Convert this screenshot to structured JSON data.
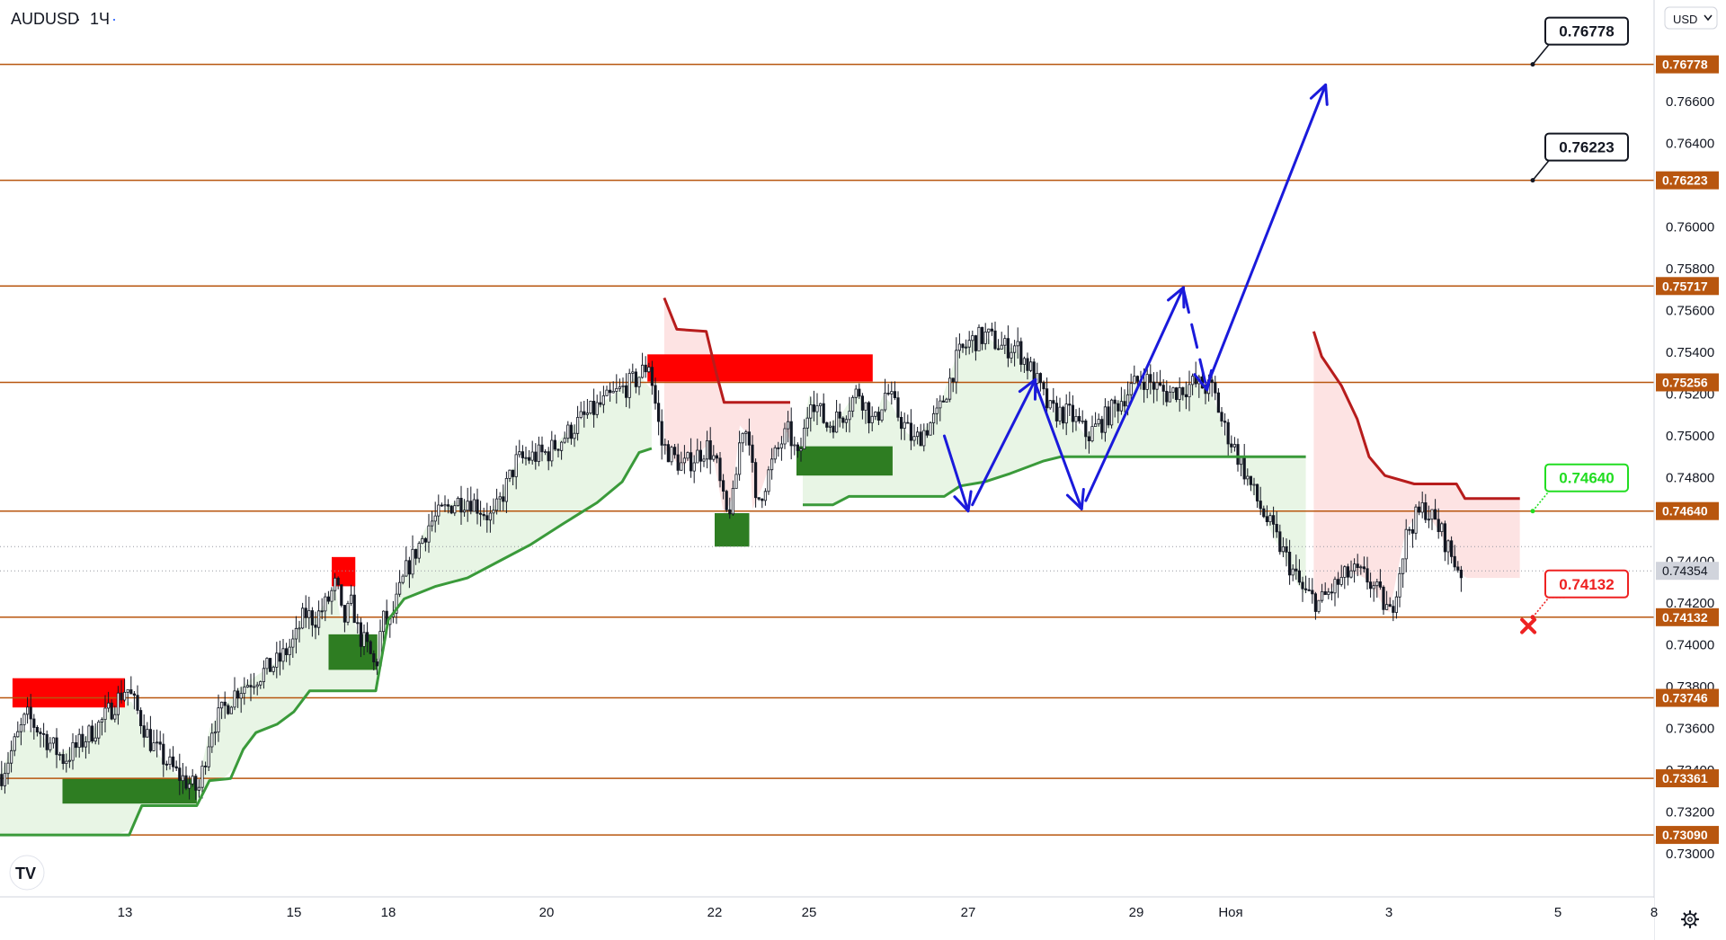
{
  "header": {
    "symbol": "AUDUSD",
    "separator": "·",
    "timeframe": "1Ч",
    "dot": "·"
  },
  "currency_button": {
    "label": "USD",
    "icon": "chevron-down-icon"
  },
  "settings": {
    "icon": "gear-icon"
  },
  "logo": {
    "text": "TV",
    "icon": "tradingview-logo-icon"
  },
  "colors": {
    "level_line": "#b8560f",
    "level_tag": "#b8560f",
    "up_zone": "#2e7d22",
    "down_zone": "#ff0000",
    "trend_up": "#3a9a3a",
    "trend_down": "#b71c1c",
    "arrow": "#1a1adb",
    "up_fill": "#e8f5e5",
    "down_fill": "#fde3e3",
    "candle": "#131722",
    "target_green": "#22dd22",
    "target_red": "#ee2222"
  },
  "chart_data": {
    "type": "candlestick",
    "symbol": "AUDUSD",
    "interval": "1Ч",
    "ylim": [
      0.729,
      0.77
    ],
    "grid": false,
    "y_ticks": [
      "0.76600",
      "0.76400",
      "0.76000",
      "0.75800",
      "0.75600",
      "0.75400",
      "0.75200",
      "0.75000",
      "0.74800",
      "0.74400",
      "0.74200",
      "0.74000",
      "0.73800",
      "0.73600",
      "0.73400",
      "0.73200",
      "0.73000"
    ],
    "x_ticks": [
      {
        "label": "13",
        "t": 13
      },
      {
        "label": "15",
        "t": 15
      },
      {
        "label": "18",
        "t": 18
      },
      {
        "label": "20",
        "t": 20
      },
      {
        "label": "22",
        "t": 22
      },
      {
        "label": "25",
        "t": 25
      },
      {
        "label": "27",
        "t": 27
      },
      {
        "label": "29",
        "t": 29
      },
      {
        "label": "Ноя",
        "t": 30
      },
      {
        "label": "3",
        "t": 32
      },
      {
        "label": "5",
        "t": 34
      },
      {
        "label": "8",
        "t": 35.2
      }
    ],
    "levels": [
      "0.76778",
      "0.76223",
      "0.75717",
      "0.75256",
      "0.74640",
      "0.74132",
      "0.73746",
      "0.73361",
      "0.73090"
    ],
    "current_price": "0.74354",
    "current_price_line": 0.7447,
    "target_callouts": [
      {
        "label": "0.76778",
        "price": 0.76778,
        "style": "neutral"
      },
      {
        "label": "0.76223",
        "price": 0.76223,
        "style": "neutral"
      },
      {
        "label": "0.74640",
        "price": 0.7464,
        "style": "take-profit"
      },
      {
        "label": "0.74132",
        "price": 0.74132,
        "style": "stop"
      }
    ],
    "zones": [
      {
        "type": "supply",
        "t0": 12.1,
        "t1": 13.0,
        "p_top": 0.7384,
        "p_bottom": 0.737
      },
      {
        "type": "demand",
        "t0": 12.5,
        "t1": 13.85,
        "p_top": 0.7336,
        "p_bottom": 0.7324
      },
      {
        "type": "supply",
        "t0": 16.2,
        "t1": 16.95,
        "p_top": 0.7442,
        "p_bottom": 0.7428
      },
      {
        "type": "demand",
        "t0": 16.1,
        "t1": 17.65,
        "p_top": 0.7405,
        "p_bottom": 0.7388
      },
      {
        "type": "supply",
        "t0": 21.2,
        "t1": 25.8,
        "p_top": 0.7539,
        "p_bottom": 0.7526
      },
      {
        "type": "demand",
        "t0": 22.0,
        "t1": 23.1,
        "p_top": 0.7463,
        "p_bottom": 0.7447
      },
      {
        "type": "demand",
        "t0": 24.6,
        "t1": 26.05,
        "p_top": 0.7495,
        "p_bottom": 0.7481
      }
    ],
    "support_trend": [
      [
        12.0,
        0.7309
      ],
      [
        13.05,
        0.7309
      ],
      [
        13.2,
        0.7323
      ],
      [
        13.85,
        0.7323
      ],
      [
        14.0,
        0.7335
      ],
      [
        14.25,
        0.7336
      ],
      [
        14.4,
        0.735
      ],
      [
        14.55,
        0.7358
      ],
      [
        14.8,
        0.7362
      ],
      [
        15.0,
        0.7368
      ],
      [
        15.2,
        0.7372
      ],
      [
        15.5,
        0.7378
      ],
      [
        17.6,
        0.7378
      ],
      [
        17.8,
        0.7395
      ],
      [
        18.0,
        0.7412
      ],
      [
        18.2,
        0.7422
      ],
      [
        18.6,
        0.7428
      ],
      [
        19.0,
        0.7432
      ],
      [
        19.4,
        0.744
      ],
      [
        19.8,
        0.7448
      ],
      [
        20.2,
        0.7458
      ],
      [
        20.6,
        0.7468
      ],
      [
        20.9,
        0.7478
      ],
      [
        21.1,
        0.7492
      ],
      [
        21.25,
        0.7494
      ]
    ],
    "support_trend_2": [
      [
        24.8,
        0.7467
      ],
      [
        25.3,
        0.7467
      ],
      [
        25.5,
        0.7471
      ],
      [
        26.7,
        0.7471
      ],
      [
        26.9,
        0.7476
      ],
      [
        27.2,
        0.7478
      ],
      [
        27.5,
        0.7482
      ],
      [
        27.9,
        0.7488
      ],
      [
        28.1,
        0.749
      ],
      [
        29.7,
        0.749
      ],
      [
        30.95,
        0.749
      ]
    ],
    "resistance_trend": [
      [
        21.4,
        0.7566
      ],
      [
        21.55,
        0.7551
      ],
      [
        21.9,
        0.755
      ],
      [
        22.05,
        0.753
      ],
      [
        22.3,
        0.7516
      ],
      [
        24.4,
        0.7516
      ]
    ],
    "resistance_trend_2": [
      [
        31.05,
        0.755
      ],
      [
        31.15,
        0.7538
      ],
      [
        31.4,
        0.7524
      ],
      [
        31.6,
        0.7508
      ],
      [
        31.75,
        0.749
      ],
      [
        31.95,
        0.7481
      ],
      [
        32.3,
        0.7477
      ],
      [
        32.8,
        0.7477
      ],
      [
        32.9,
        0.747
      ],
      [
        33.55,
        0.747
      ]
    ],
    "forecast_arrows": [
      {
        "points": [
          [
            26.7,
            0.75
          ],
          [
            27.0,
            0.7464
          ]
        ],
        "dash": false
      },
      {
        "points": [
          [
            27.05,
            0.7467
          ],
          [
            27.8,
            0.7527
          ]
        ],
        "dash": false
      },
      {
        "points": [
          [
            27.8,
            0.7525
          ],
          [
            28.35,
            0.7465
          ]
        ],
        "dash": false
      },
      {
        "points": [
          [
            28.4,
            0.7469
          ],
          [
            29.5,
            0.7571
          ]
        ],
        "dash": false
      },
      {
        "points": [
          [
            29.5,
            0.757
          ],
          [
            29.75,
            0.7522
          ]
        ],
        "dash": true
      },
      {
        "points": [
          [
            29.75,
            0.7524
          ],
          [
            31.2,
            0.7668
          ]
        ],
        "dash": false
      }
    ],
    "stop_marker": {
      "t": 33.65,
      "p": 0.7409
    },
    "candle_path": [
      [
        12.0,
        0.7338
      ],
      [
        12.2,
        0.7366
      ],
      [
        12.5,
        0.7345
      ],
      [
        12.8,
        0.7363
      ],
      [
        13.0,
        0.738
      ],
      [
        13.3,
        0.7352
      ],
      [
        13.6,
        0.7338
      ],
      [
        13.85,
        0.733
      ],
      [
        14.0,
        0.736
      ],
      [
        14.3,
        0.7378
      ],
      [
        14.8,
        0.7392
      ],
      [
        15.1,
        0.7408
      ],
      [
        15.3,
        0.7415
      ],
      [
        15.6,
        0.7412
      ],
      [
        16.0,
        0.742
      ],
      [
        16.3,
        0.743
      ],
      [
        16.5,
        0.741
      ],
      [
        16.8,
        0.742
      ],
      [
        17.0,
        0.7405
      ],
      [
        17.3,
        0.7398
      ],
      [
        17.55,
        0.7388
      ],
      [
        17.75,
        0.7412
      ],
      [
        18.0,
        0.741
      ],
      [
        18.2,
        0.7435
      ],
      [
        18.5,
        0.7458
      ],
      [
        18.8,
        0.7468
      ],
      [
        19.0,
        0.747
      ],
      [
        19.3,
        0.746
      ],
      [
        19.6,
        0.7488
      ],
      [
        20.0,
        0.7492
      ],
      [
        20.4,
        0.7508
      ],
      [
        20.8,
        0.752
      ],
      [
        21.05,
        0.7527
      ],
      [
        21.2,
        0.7535
      ],
      [
        21.35,
        0.7496
      ],
      [
        21.6,
        0.7485
      ],
      [
        21.9,
        0.7495
      ],
      [
        22.1,
        0.7478
      ],
      [
        22.3,
        0.7462
      ],
      [
        22.55,
        0.747
      ],
      [
        22.8,
        0.7505
      ],
      [
        23.1,
        0.75
      ],
      [
        23.2,
        0.7465
      ],
      [
        23.5,
        0.7475
      ],
      [
        23.8,
        0.7488
      ],
      [
        24.1,
        0.7498
      ],
      [
        24.3,
        0.7502
      ],
      [
        24.6,
        0.7488
      ],
      [
        24.8,
        0.7502
      ],
      [
        25.0,
        0.752
      ],
      [
        25.2,
        0.7505
      ],
      [
        25.4,
        0.751
      ],
      [
        25.6,
        0.7522
      ],
      [
        25.8,
        0.7505
      ],
      [
        25.95,
        0.7522
      ],
      [
        26.1,
        0.751
      ],
      [
        26.3,
        0.7497
      ],
      [
        26.6,
        0.751
      ],
      [
        26.85,
        0.7538
      ],
      [
        27.0,
        0.7545
      ],
      [
        27.2,
        0.7548
      ],
      [
        27.4,
        0.7542
      ],
      [
        27.55,
        0.7543
      ],
      [
        27.75,
        0.753
      ],
      [
        27.95,
        0.7512
      ],
      [
        28.2,
        0.751
      ],
      [
        28.4,
        0.75
      ],
      [
        28.6,
        0.7508
      ],
      [
        28.9,
        0.7522
      ],
      [
        29.05,
        0.7528
      ],
      [
        29.3,
        0.752
      ],
      [
        29.6,
        0.7525
      ],
      [
        29.8,
        0.7522
      ],
      [
        29.9,
        0.7505
      ],
      [
        30.1,
        0.7488
      ],
      [
        30.3,
        0.747
      ],
      [
        30.5,
        0.7455
      ],
      [
        30.7,
        0.744
      ],
      [
        30.9,
        0.7425
      ],
      [
        31.1,
        0.742
      ],
      [
        31.3,
        0.7428
      ],
      [
        31.5,
        0.7435
      ],
      [
        31.7,
        0.7432
      ],
      [
        31.85,
        0.7424
      ],
      [
        32.0,
        0.7414
      ],
      [
        32.2,
        0.7455
      ],
      [
        32.4,
        0.7466
      ],
      [
        32.6,
        0.7454
      ],
      [
        32.75,
        0.744
      ],
      [
        32.9,
        0.7432
      ]
    ]
  }
}
